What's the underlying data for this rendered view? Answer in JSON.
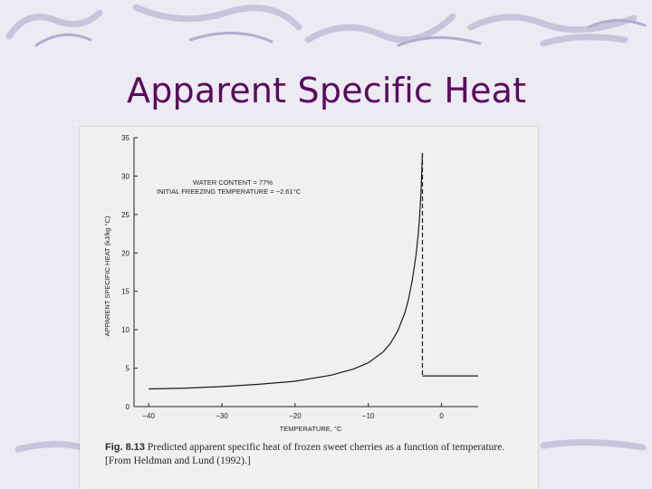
{
  "slide": {
    "title": "Apparent Specific Heat"
  },
  "figure": {
    "caption_label": "Fig. 8.13",
    "caption_text": "Predicted apparent specific heat of frozen sweet cherries as a function of temperature. [From Heldman and Lund (1992).]"
  },
  "chart_data": {
    "type": "line",
    "title": "",
    "xlabel": "TEMPERATURE, °C",
    "ylabel": "APPARENT SPECIFIC HEAT (kJ/kg °C)",
    "xlim": [
      -42,
      5
    ],
    "ylim": [
      0,
      35
    ],
    "x_ticks": [
      -40,
      -30,
      -20,
      -10,
      0
    ],
    "y_ticks": [
      0,
      5,
      10,
      15,
      20,
      25,
      30,
      35
    ],
    "annotations": [
      "WATER CONTENT = 77%",
      "INITIAL FREEZING TEMPERATURE = −2.61°C"
    ],
    "grid": false,
    "legend": "none",
    "series": [
      {
        "style": "solid",
        "x": [
          -40,
          -35,
          -30,
          -25,
          -20,
          -15,
          -12,
          -10,
          -8,
          -7,
          -6,
          -5,
          -4.5,
          -4,
          -3.5,
          -3.2,
          -3.0,
          -2.8,
          -2.61
        ],
        "y": [
          2.3,
          2.4,
          2.6,
          2.9,
          3.3,
          4.1,
          4.9,
          5.7,
          7.1,
          8.2,
          9.8,
          12.2,
          14.0,
          16.4,
          19.6,
          22.2,
          24.6,
          27.9,
          33.0
        ]
      },
      {
        "style": "dashed",
        "x": [
          -2.61,
          -2.61
        ],
        "y": [
          33.0,
          4.0
        ]
      },
      {
        "style": "solid",
        "x": [
          -2.61,
          5
        ],
        "y": [
          4.0,
          4.0
        ]
      }
    ]
  }
}
